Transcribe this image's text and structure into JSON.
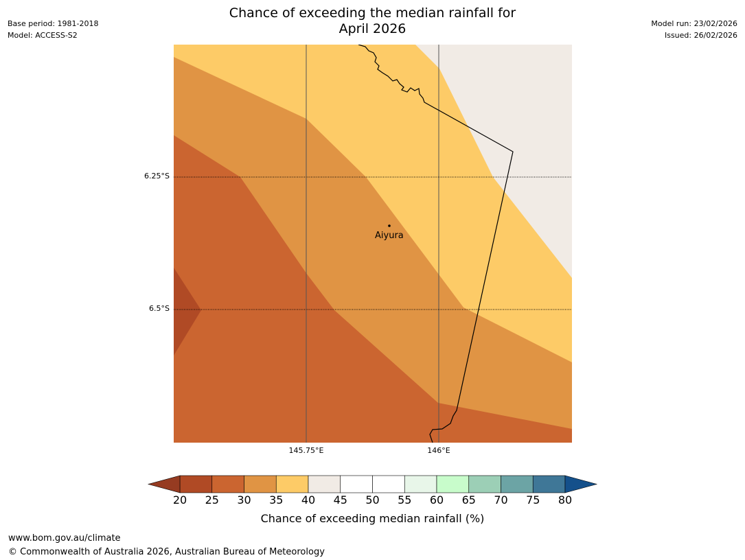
{
  "header": {
    "title_line1": "Chance of exceeding the median rainfall for",
    "title_line2": "April 2026",
    "base_period": "Base period: 1981-2018",
    "model": "Model: ACCESS-S2",
    "model_run": "Model run: 23/02/2026",
    "issued": "Issued: 26/02/2026"
  },
  "map": {
    "place_label": "Aiyura",
    "lat_labels": [
      "6.25°S",
      "6.5°S"
    ],
    "lon_labels": [
      "145.75°E",
      "146°E"
    ],
    "region_colors": {
      "r20_25": "#b04a25",
      "r25_30": "#cb6530",
      "r30_35": "#e09444",
      "r35_40": "#fdcb67",
      "r40_45": "#f1ebe5"
    }
  },
  "colorbar": {
    "title": "Chance of exceeding median rainfall (%)",
    "ticks": [
      "20",
      "25",
      "30",
      "35",
      "40",
      "45",
      "50",
      "55",
      "60",
      "65",
      "70",
      "75",
      "80"
    ],
    "under_color": "#963b21",
    "over_color": "#14508b",
    "bins": [
      {
        "range": "20-25",
        "color": "#b04a25"
      },
      {
        "range": "25-30",
        "color": "#cb6530"
      },
      {
        "range": "30-35",
        "color": "#e09444"
      },
      {
        "range": "35-40",
        "color": "#fdcb67"
      },
      {
        "range": "40-45",
        "color": "#f1ebe5"
      },
      {
        "range": "45-50",
        "color": "#ffffff"
      },
      {
        "range": "50-55",
        "color": "#ffffff"
      },
      {
        "range": "55-60",
        "color": "#e8f6e9"
      },
      {
        "range": "60-65",
        "color": "#c8fccb"
      },
      {
        "range": "65-70",
        "color": "#9ccfb6"
      },
      {
        "range": "70-75",
        "color": "#6ca4a5"
      },
      {
        "range": "75-80",
        "color": "#3f7797"
      }
    ]
  },
  "footer": {
    "url": "www.bom.gov.au/climate",
    "copyright": "© Commonwealth of Australia 2026, Australian Bureau of Meteorology"
  }
}
